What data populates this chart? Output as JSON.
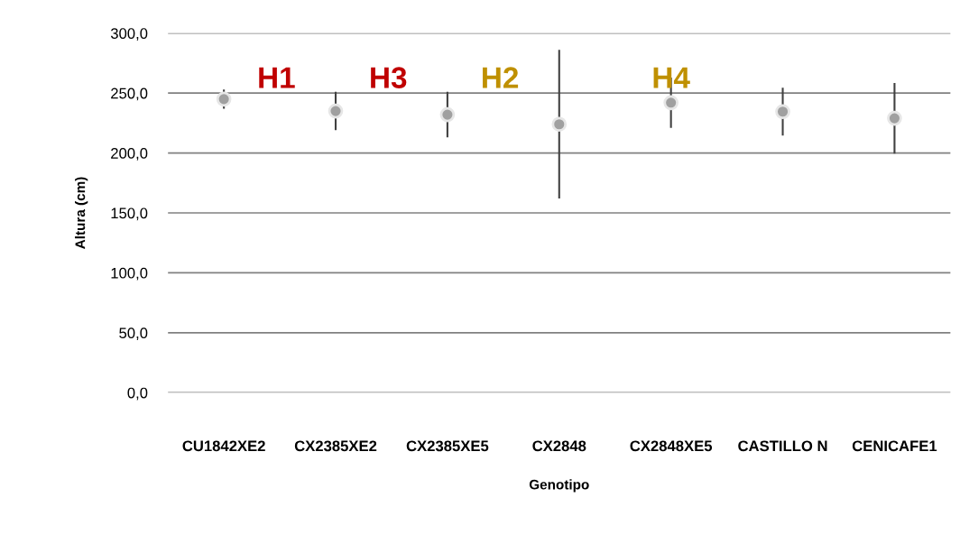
{
  "chart_data": {
    "type": "scatter",
    "xlabel": "Genotipo",
    "ylabel": "Altura (cm)",
    "categories": [
      "CU1842XE2",
      "CX2385XE2",
      "CX2385XE5",
      "CX2848",
      "CX2848XE5",
      "CASTILLO N",
      "CENICAFE1"
    ],
    "series": [
      {
        "color": "#a0a0a0",
        "values": [
          245,
          235,
          232,
          224,
          242,
          234.5,
          229
        ],
        "errors": [
          8,
          16,
          19,
          62,
          21,
          20,
          29.5
        ]
      }
    ],
    "ylim": [
      0,
      300
    ],
    "yticks": [
      {
        "value": 0,
        "label": "0,0"
      },
      {
        "value": 50,
        "label": "50,0"
      },
      {
        "value": 100,
        "label": "100,0"
      },
      {
        "value": 150,
        "label": "150,0"
      },
      {
        "value": 200,
        "label": "200,0"
      },
      {
        "value": 250,
        "label": "250,0"
      },
      {
        "value": 300,
        "label": "300,0"
      }
    ],
    "grid": "y",
    "marker": "circle",
    "annotations": [
      "H1",
      "H3",
      "H2",
      "H4"
    ]
  }
}
